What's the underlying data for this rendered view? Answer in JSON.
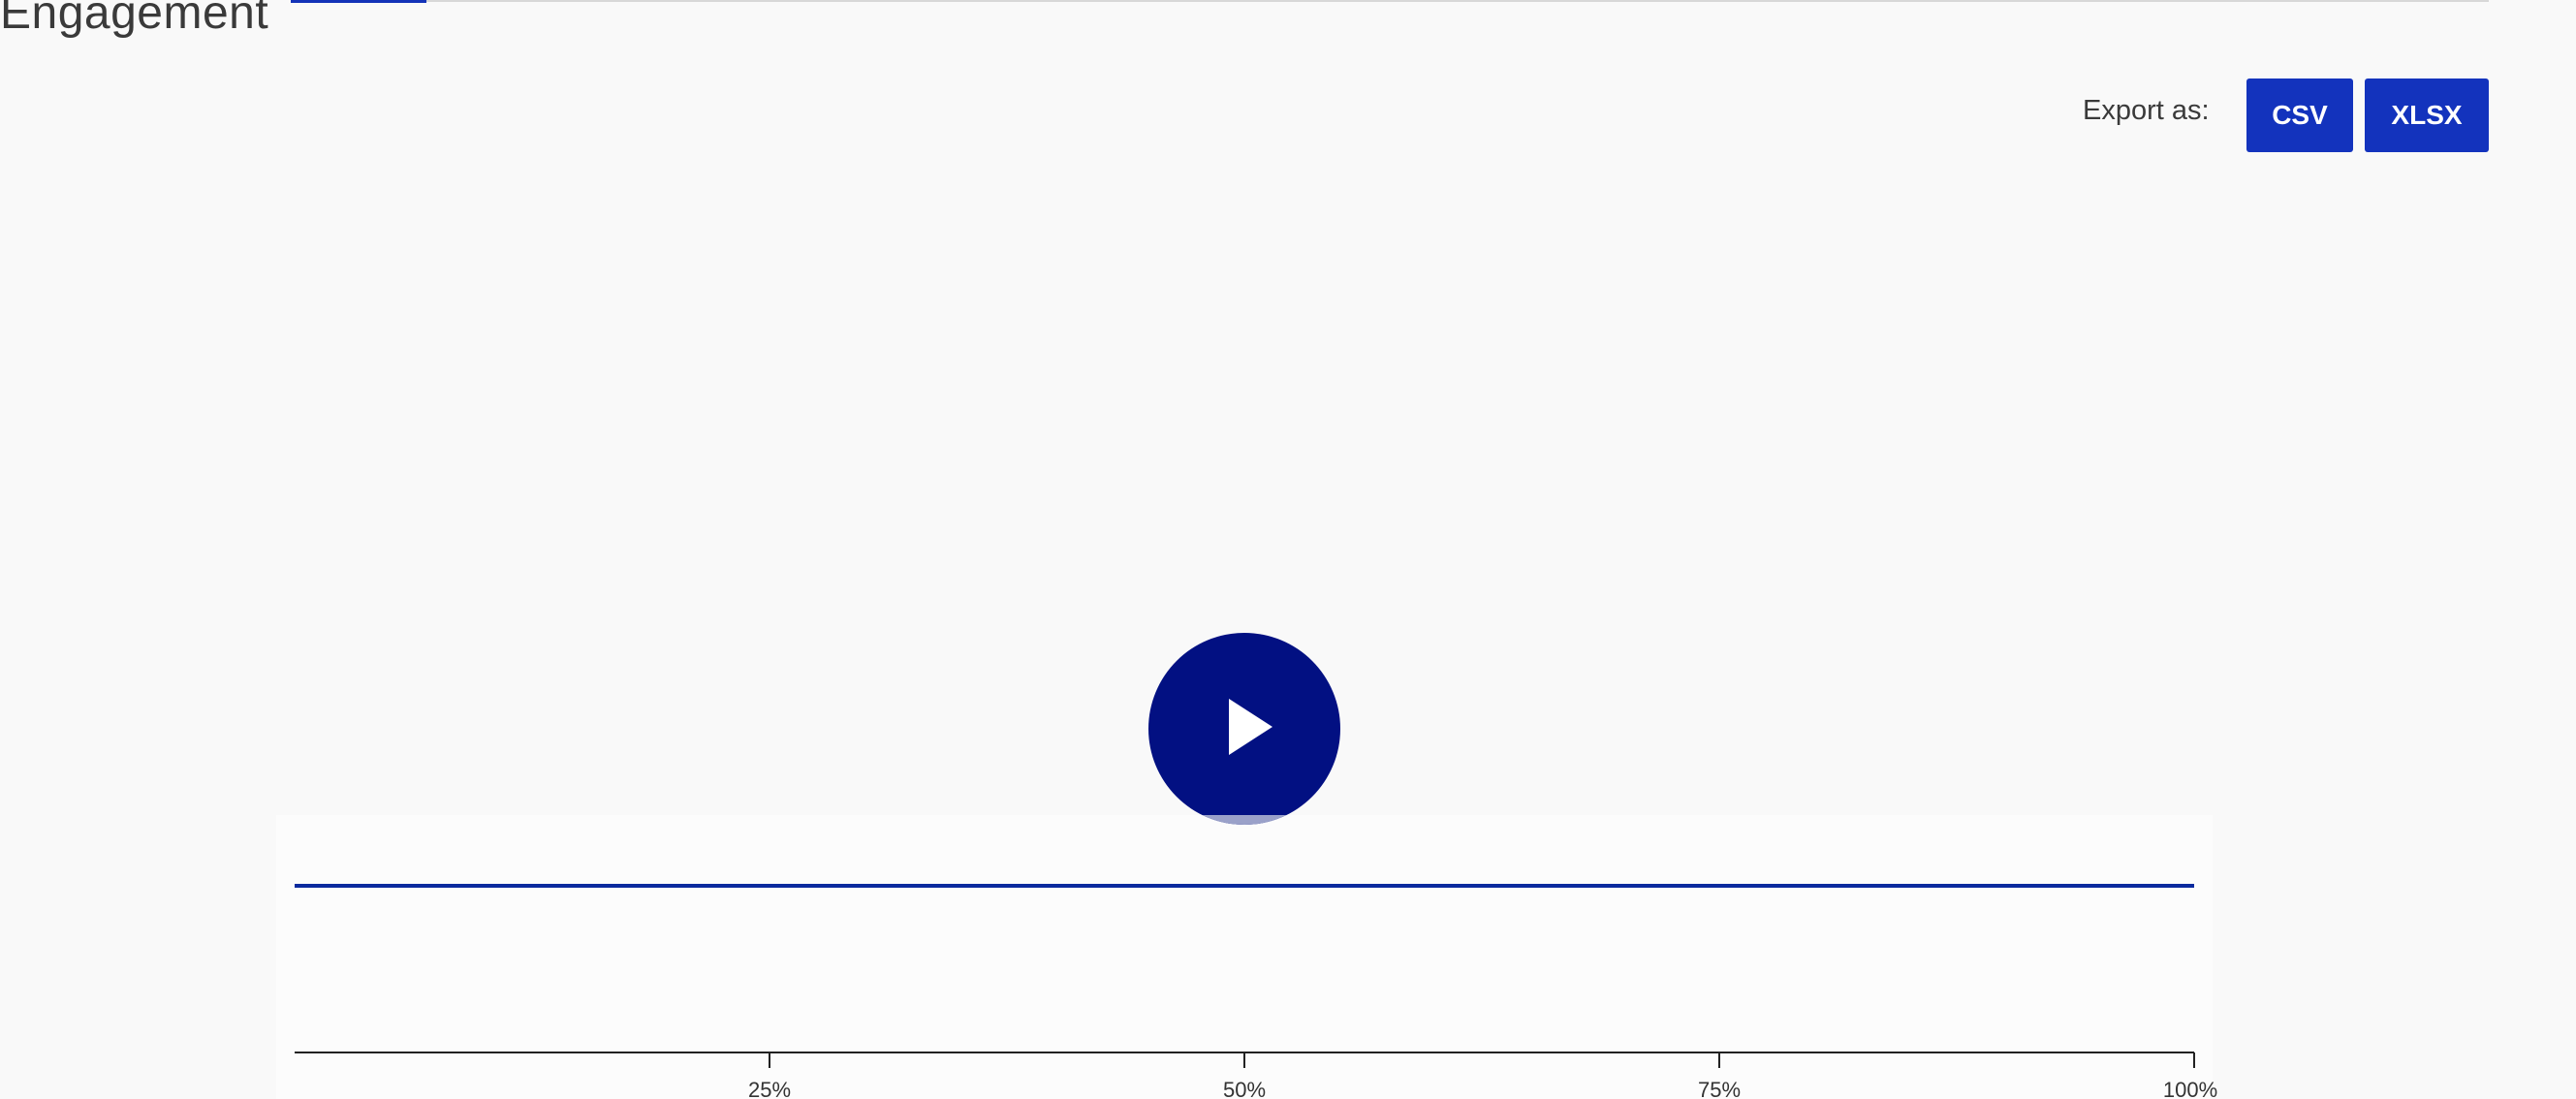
{
  "page": {
    "title": "Engagement"
  },
  "export": {
    "label": "Export as:",
    "csv_label": "CSV",
    "xlsx_label": "XLSX"
  },
  "video": {
    "play_icon": "play-icon"
  },
  "colors": {
    "accent": "#1333bd",
    "play_button": "#021082",
    "series_line": "#0b2a9e"
  },
  "chart_data": {
    "type": "line",
    "title": "",
    "xlabel": "",
    "ylabel": "",
    "xlim": [
      0,
      100
    ],
    "x_ticks": [
      "25%",
      "50%",
      "75%",
      "100%"
    ],
    "x_tick_values": [
      25,
      50,
      75,
      100
    ],
    "series": [
      {
        "x": [
          0,
          100
        ],
        "y": [
          100,
          100
        ]
      }
    ],
    "ylim": [
      0,
      200
    ],
    "grid": false
  }
}
